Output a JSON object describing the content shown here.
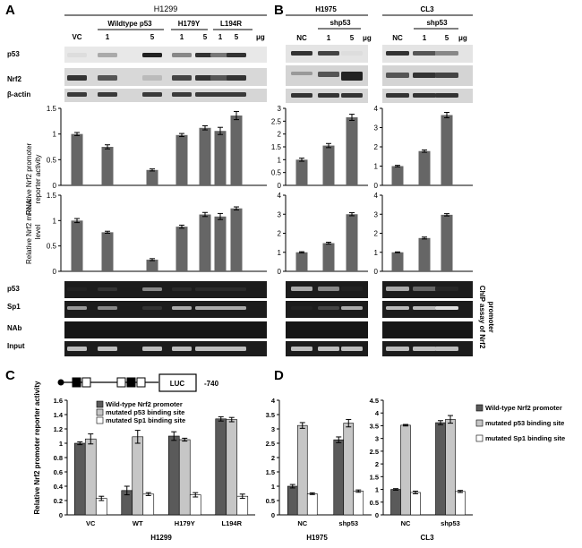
{
  "panel_labels": {
    "a": "A",
    "b": "B",
    "c": "C",
    "d": "D"
  },
  "panel_a": {
    "cell_line": "H1299",
    "groups": [
      {
        "label": "VC",
        "doses": []
      },
      {
        "label": "Wildtype p53",
        "doses": [
          "1",
          "5"
        ]
      },
      {
        "label": "H179Y",
        "doses": [
          "1",
          "5"
        ]
      },
      {
        "label": "L194R",
        "doses": [
          "1",
          "5"
        ]
      }
    ],
    "unit": "μg",
    "blot_labels": [
      "p53",
      "Nrf2",
      "β-actin"
    ],
    "chip_labels": [
      "p53",
      "Sp1",
      "NAb",
      "Input"
    ]
  },
  "panel_b": {
    "h1975": {
      "title": "H1975",
      "group": "shp53",
      "lanes": [
        "NC",
        "1",
        "5"
      ],
      "unit": "μg"
    },
    "cl3": {
      "title": "CL3",
      "group": "shp53",
      "lanes": [
        "NC",
        "1",
        "5"
      ],
      "unit": "μg"
    },
    "chip_side_label_1": "ChIP assay of Nrf2",
    "chip_side_label_2": "promoter"
  },
  "panel_c": {
    "construct_label": "LUC",
    "construct_position": "-740",
    "xlabel": "H1299",
    "ylabel": "Relative Nrf2 promoter reporter activity"
  },
  "panel_d": {
    "h1975_label": "H1975",
    "cl3_label": "CL3"
  },
  "colors": {
    "dark": "#5a5a5a",
    "light": "#c6c6c6",
    "white": "#ffffff",
    "bar": "#666666"
  },
  "chart_data": [
    {
      "id": "a_promoter",
      "type": "bar",
      "ylabel": "Relative Nrf2 promoter reporter activity",
      "categories": [
        "VC",
        "WT 1",
        "WT 5",
        "H179Y 1",
        "H179Y 5",
        "L194R 1",
        "L194R 5"
      ],
      "values": [
        1.0,
        0.75,
        0.3,
        0.98,
        1.12,
        1.06,
        1.36
      ],
      "errors": [
        0.03,
        0.04,
        0.02,
        0.03,
        0.04,
        0.07,
        0.08
      ],
      "ylim": [
        0,
        1.5
      ],
      "yticks": [
        "0",
        "0.5",
        "1",
        "1.5"
      ]
    },
    {
      "id": "a_mrna",
      "type": "bar",
      "ylabel": "Relative Nrf2 mRNA level",
      "categories": [
        "VC",
        "WT 1",
        "WT 5",
        "H179Y 1",
        "H179Y 5",
        "L194R 1",
        "L194R 5"
      ],
      "values": [
        1.0,
        0.77,
        0.23,
        0.88,
        1.12,
        1.08,
        1.24
      ],
      "errors": [
        0.04,
        0.02,
        0.02,
        0.03,
        0.04,
        0.06,
        0.03
      ],
      "ylim": [
        0,
        1.5
      ],
      "yticks": [
        "0",
        "0.5",
        "1",
        "1.5"
      ]
    },
    {
      "id": "b_h1975_promoter",
      "type": "bar",
      "categories": [
        "NC",
        "1",
        "5"
      ],
      "values": [
        1.0,
        1.55,
        2.65
      ],
      "errors": [
        0.06,
        0.08,
        0.12
      ],
      "ylim": [
        0,
        3
      ],
      "yticks": [
        "0",
        "0.5",
        "1",
        "1.5",
        "2",
        "2.5",
        "3"
      ]
    },
    {
      "id": "b_cl3_promoter",
      "type": "bar",
      "categories": [
        "NC",
        "1",
        "5"
      ],
      "values": [
        1.0,
        1.78,
        3.65
      ],
      "errors": [
        0.04,
        0.06,
        0.14
      ],
      "ylim": [
        0,
        4
      ],
      "yticks": [
        "0",
        "1",
        "2",
        "3",
        "4"
      ]
    },
    {
      "id": "b_h1975_mrna",
      "type": "bar",
      "categories": [
        "NC",
        "1",
        "5"
      ],
      "values": [
        1.0,
        1.48,
        3.0
      ],
      "errors": [
        0.03,
        0.05,
        0.08
      ],
      "ylim": [
        0,
        4
      ],
      "yticks": [
        "0",
        "1",
        "2",
        "3",
        "4"
      ]
    },
    {
      "id": "b_cl3_mrna",
      "type": "bar",
      "categories": [
        "NC",
        "1",
        "5"
      ],
      "values": [
        1.0,
        1.75,
        2.97
      ],
      "errors": [
        0.02,
        0.05,
        0.06
      ],
      "ylim": [
        0,
        4
      ],
      "yticks": [
        "0",
        "1",
        "2",
        "3",
        "4"
      ]
    },
    {
      "id": "c",
      "type": "bar",
      "title": "",
      "xlabel": "H1299",
      "ylabel": "Relative Nrf2 promoter reporter activity",
      "categories": [
        "VC",
        "WT",
        "H179Y",
        "L194R"
      ],
      "series": [
        {
          "name": "Wild-type Nrf2 promoter",
          "values": [
            1.0,
            0.34,
            1.1,
            1.34
          ],
          "errors": [
            0.02,
            0.06,
            0.06,
            0.03
          ]
        },
        {
          "name": "mutated p53 binding site",
          "values": [
            1.06,
            1.09,
            1.05,
            1.33
          ],
          "errors": [
            0.07,
            0.09,
            0.02,
            0.03
          ]
        },
        {
          "name": "mutated Sp1 binding site",
          "values": [
            0.23,
            0.29,
            0.28,
            0.26
          ],
          "errors": [
            0.03,
            0.02,
            0.03,
            0.03
          ]
        }
      ],
      "ylim": [
        0,
        1.6
      ],
      "yticks": [
        "0",
        "0.2",
        "0.4",
        "0.6",
        "0.8",
        "1",
        "1.2",
        "1.4",
        "1.6"
      ]
    },
    {
      "id": "d_h1975",
      "type": "bar",
      "xlabel": "H1975",
      "categories": [
        "NC",
        "shp53"
      ],
      "series": [
        {
          "name": "Wild-type Nrf2 promoter",
          "values": [
            1.0,
            2.62
          ],
          "errors": [
            0.06,
            0.1
          ]
        },
        {
          "name": "mutated p53 binding site",
          "values": [
            3.12,
            3.2
          ],
          "errors": [
            0.1,
            0.13
          ]
        },
        {
          "name": "mutated Sp1 binding site",
          "values": [
            0.74,
            0.83
          ],
          "errors": [
            0.03,
            0.04
          ]
        }
      ],
      "ylim": [
        0,
        4
      ],
      "yticks": [
        "0",
        "0.5",
        "1",
        "1.5",
        "2",
        "2.5",
        "3",
        "3.5",
        "4"
      ]
    },
    {
      "id": "d_cl3",
      "type": "bar",
      "xlabel": "CL3",
      "categories": [
        "NC",
        "shp53"
      ],
      "series": [
        {
          "name": "Wild-type Nrf2 promoter",
          "values": [
            1.0,
            3.62
          ],
          "errors": [
            0.03,
            0.08
          ]
        },
        {
          "name": "mutated p53 binding site",
          "values": [
            3.52,
            3.75
          ],
          "errors": [
            0.03,
            0.15
          ]
        },
        {
          "name": "mutated Sp1 binding site",
          "values": [
            0.88,
            0.92
          ],
          "errors": [
            0.05,
            0.04
          ]
        }
      ],
      "ylim": [
        0,
        4.5
      ],
      "yticks": [
        "0",
        "0.5",
        "1",
        "1.5",
        "2",
        "2.5",
        "3",
        "3.5",
        "4",
        "4.5"
      ],
      "legend_position": "right",
      "legend": [
        "Wild-type Nrf2 promoter",
        "mutated p53 binding site",
        "mutated Sp1 binding site"
      ]
    }
  ]
}
